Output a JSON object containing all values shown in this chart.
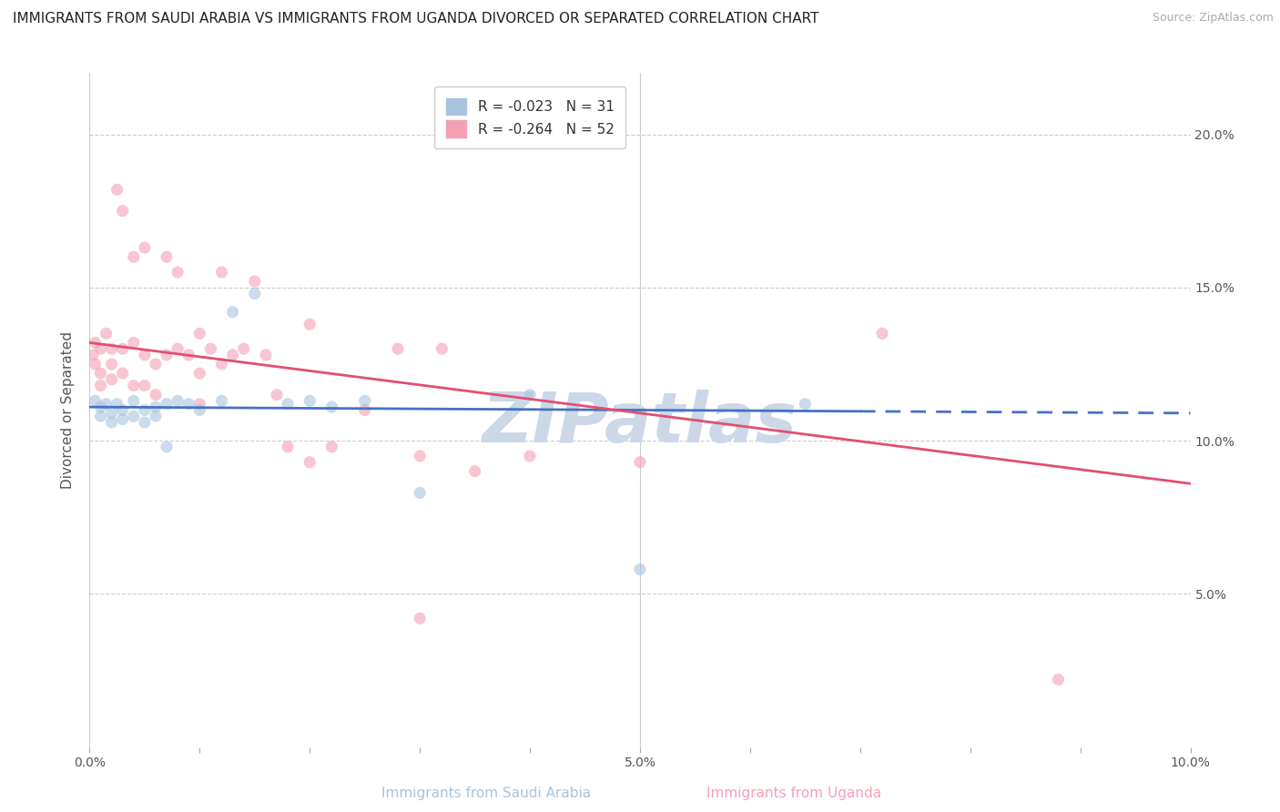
{
  "title": "IMMIGRANTS FROM SAUDI ARABIA VS IMMIGRANTS FROM UGANDA DIVORCED OR SEPARATED CORRELATION CHART",
  "source": "Source: ZipAtlas.com",
  "ylabel": "Divorced or Separated",
  "xlabel_blue": "Immigrants from Saudi Arabia",
  "xlabel_pink": "Immigrants from Uganda",
  "legend_blue_r": "R = -0.023",
  "legend_blue_n": "N = 31",
  "legend_pink_r": "R = -0.264",
  "legend_pink_n": "N = 52",
  "blue_color": "#a8c4e0",
  "pink_color": "#f4a0b5",
  "trend_blue": "#4472c4",
  "trend_pink": "#e05070",
  "watermark": "ZIPatlas",
  "xlim": [
    0.0,
    0.1
  ],
  "ylim": [
    0.0,
    0.22
  ],
  "blue_x": [
    0.0005,
    0.001,
    0.001,
    0.0015,
    0.002,
    0.002,
    0.0025,
    0.003,
    0.003,
    0.004,
    0.004,
    0.005,
    0.005,
    0.006,
    0.006,
    0.007,
    0.007,
    0.008,
    0.009,
    0.01,
    0.012,
    0.013,
    0.015,
    0.018,
    0.02,
    0.022,
    0.025,
    0.03,
    0.04,
    0.065,
    0.05
  ],
  "blue_y": [
    0.113,
    0.111,
    0.108,
    0.112,
    0.109,
    0.106,
    0.112,
    0.11,
    0.107,
    0.113,
    0.108,
    0.11,
    0.106,
    0.111,
    0.108,
    0.112,
    0.098,
    0.113,
    0.112,
    0.11,
    0.113,
    0.142,
    0.148,
    0.112,
    0.113,
    0.111,
    0.113,
    0.083,
    0.115,
    0.112,
    0.058
  ],
  "pink_x": [
    0.0003,
    0.0005,
    0.0005,
    0.001,
    0.001,
    0.001,
    0.0015,
    0.002,
    0.002,
    0.002,
    0.0025,
    0.003,
    0.003,
    0.003,
    0.004,
    0.004,
    0.004,
    0.005,
    0.005,
    0.005,
    0.006,
    0.006,
    0.007,
    0.007,
    0.008,
    0.008,
    0.009,
    0.01,
    0.01,
    0.01,
    0.011,
    0.012,
    0.012,
    0.013,
    0.014,
    0.015,
    0.016,
    0.017,
    0.018,
    0.02,
    0.02,
    0.022,
    0.025,
    0.028,
    0.03,
    0.032,
    0.035,
    0.04,
    0.05,
    0.072,
    0.088,
    0.03
  ],
  "pink_y": [
    0.128,
    0.125,
    0.132,
    0.13,
    0.122,
    0.118,
    0.135,
    0.125,
    0.12,
    0.13,
    0.182,
    0.13,
    0.175,
    0.122,
    0.16,
    0.132,
    0.118,
    0.128,
    0.163,
    0.118,
    0.125,
    0.115,
    0.128,
    0.16,
    0.13,
    0.155,
    0.128,
    0.122,
    0.135,
    0.112,
    0.13,
    0.125,
    0.155,
    0.128,
    0.13,
    0.152,
    0.128,
    0.115,
    0.098,
    0.138,
    0.093,
    0.098,
    0.11,
    0.13,
    0.095,
    0.13,
    0.09,
    0.095,
    0.093,
    0.135,
    0.022,
    0.042
  ],
  "blue_trend_x": [
    0.0,
    0.1
  ],
  "blue_trend_y": [
    0.111,
    0.109
  ],
  "pink_trend_x": [
    0.0,
    0.1
  ],
  "pink_trend_y": [
    0.132,
    0.086
  ],
  "title_fontsize": 11,
  "source_fontsize": 9,
  "label_fontsize": 11,
  "tick_fontsize": 10,
  "legend_fontsize": 11,
  "marker_size": 90,
  "marker_alpha": 0.6,
  "background_color": "#ffffff",
  "grid_color": "#cccccc",
  "watermark_color": "#ccd8e8",
  "watermark_fontsize": 55
}
